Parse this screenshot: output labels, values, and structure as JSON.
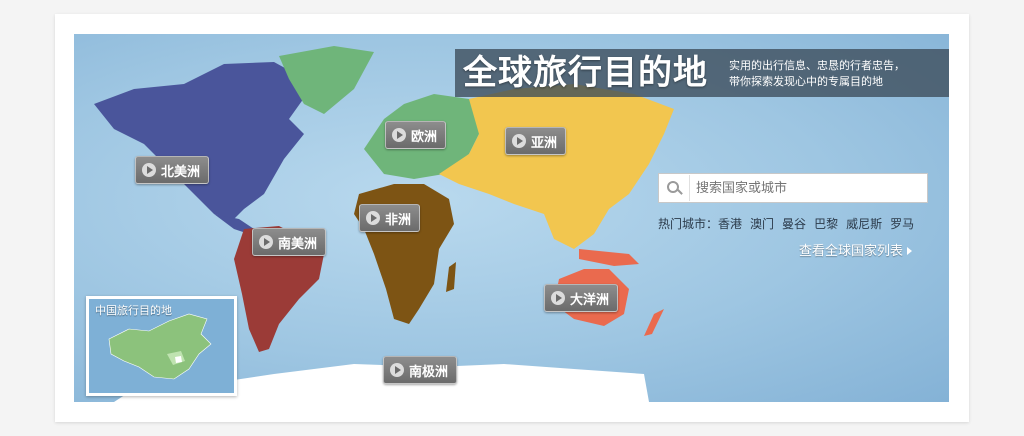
{
  "banner": {
    "title": "全球旅行目的地",
    "subtitle_line1": "实用的出行信息、忠恳的行者忠告，",
    "subtitle_line2": "带你探索发现心中的专属目的地"
  },
  "continents": [
    {
      "name": "北美洲",
      "color": "#4a559b"
    },
    {
      "name": "欧洲",
      "color": "#6fb57a"
    },
    {
      "name": "亚洲",
      "color": "#f2c64f"
    },
    {
      "name": "非洲",
      "color": "#7d5414"
    },
    {
      "name": "南美洲",
      "color": "#9b3b37"
    },
    {
      "name": "大洋洲",
      "color": "#ea6a4e"
    },
    {
      "name": "南极洲",
      "color": "#ffffff"
    }
  ],
  "search": {
    "placeholder": "搜索国家或城市"
  },
  "hot_cities": {
    "label": "热门城市：",
    "cities": [
      "香港",
      "澳门",
      "曼谷",
      "巴黎",
      "威尼斯",
      "罗马"
    ]
  },
  "all_countries_link": "查看全球国家列表",
  "china_inset": {
    "label": "中国旅行目的地"
  },
  "colors": {
    "ocean": "#9ec6e2",
    "banner_bg": "#3c4b5a"
  }
}
